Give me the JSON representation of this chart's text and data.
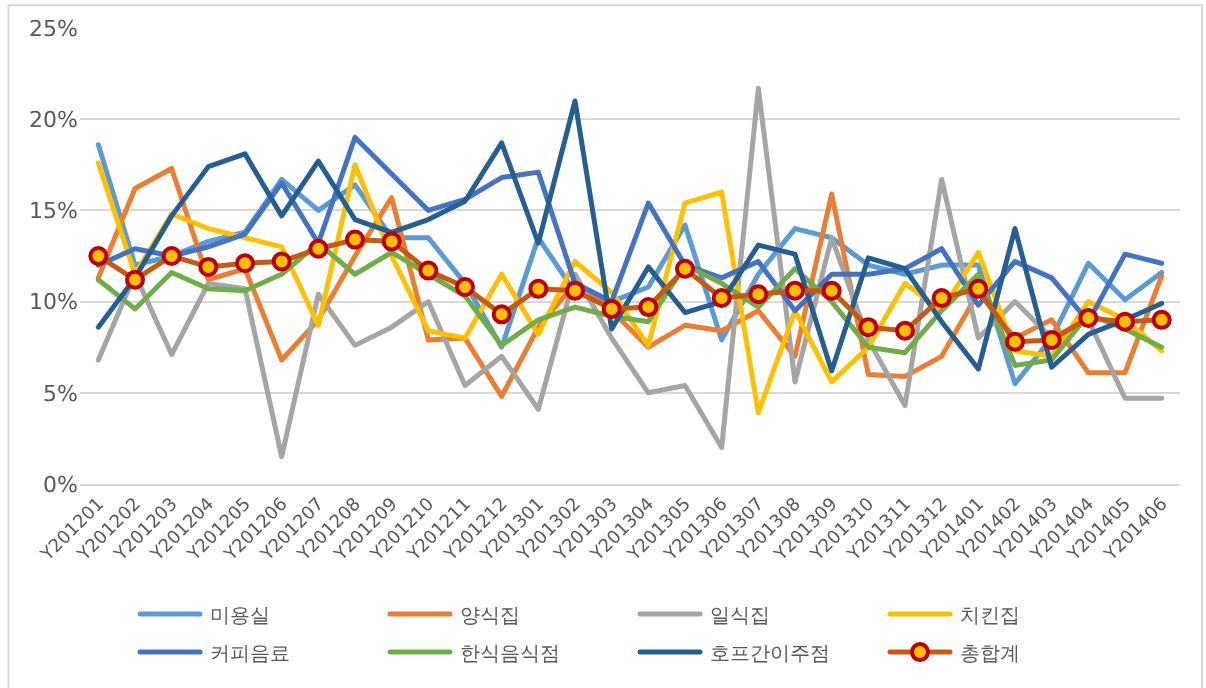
{
  "chart_data": {
    "type": "line",
    "categories": [
      "Y201201",
      "Y201202",
      "Y201203",
      "Y201204",
      "Y201205",
      "Y201206",
      "Y201207",
      "Y201208",
      "Y201209",
      "Y201210",
      "Y201211",
      "Y201212",
      "Y201301",
      "Y201302",
      "Y201303",
      "Y201304",
      "Y201305",
      "Y201306",
      "Y201307",
      "Y201308",
      "Y201309",
      "Y201310",
      "Y201311",
      "Y201312",
      "Y201401",
      "Y201402",
      "Y201403",
      "Y201404",
      "Y201405",
      "Y201406"
    ],
    "series": [
      {
        "name": "미용실",
        "color": "#5b9bd5",
        "values": [
          18.6,
          12.0,
          12.5,
          13.3,
          13.8,
          16.7,
          15.0,
          16.4,
          13.5,
          13.5,
          11.0,
          7.5,
          13.5,
          10.5,
          10.0,
          10.8,
          14.2,
          7.9,
          11.5,
          14.0,
          13.5,
          12.0,
          11.5,
          12.0,
          12.0,
          5.5,
          8.0,
          12.1,
          10.1,
          11.6
        ]
      },
      {
        "name": "양식집",
        "color": "#ed7d31",
        "values": [
          11.3,
          16.2,
          17.3,
          11.2,
          11.8,
          6.8,
          9.0,
          12.5,
          15.7,
          7.9,
          8.0,
          4.8,
          8.6,
          11.0,
          9.5,
          7.5,
          8.7,
          8.4,
          9.5,
          7.0,
          15.9,
          6.0,
          5.9,
          7.0,
          10.5,
          8.0,
          9.0,
          6.1,
          6.1,
          11.4
        ]
      },
      {
        "name": "일식집",
        "color": "#a5a5a5",
        "values": [
          6.8,
          11.5,
          7.1,
          11.0,
          10.7,
          1.5,
          10.4,
          7.6,
          8.6,
          10.0,
          5.4,
          7.0,
          4.1,
          11.5,
          8.0,
          5.0,
          5.4,
          2.0,
          21.7,
          5.6,
          13.5,
          7.9,
          4.3,
          16.7,
          8.0,
          10.0,
          8.0,
          9.0,
          4.7,
          4.7
        ]
      },
      {
        "name": "치킨집",
        "color": "#ffc000",
        "values": [
          17.6,
          11.5,
          14.8,
          14.0,
          13.5,
          13.0,
          8.7,
          17.5,
          12.5,
          8.4,
          8.0,
          11.5,
          8.2,
          12.2,
          10.5,
          7.6,
          15.4,
          16.0,
          3.9,
          9.5,
          5.6,
          7.5,
          11.0,
          9.5,
          12.7,
          7.3,
          7.0,
          10.0,
          9.0,
          7.3
        ]
      },
      {
        "name": "커피음료",
        "color": "#4472c4",
        "values": [
          12.0,
          12.9,
          12.5,
          13.0,
          13.7,
          16.5,
          13.2,
          19.0,
          17.0,
          15.0,
          15.6,
          16.8,
          17.1,
          11.0,
          10.0,
          15.4,
          12.0,
          11.3,
          12.2,
          9.5,
          11.5,
          11.5,
          11.8,
          12.9,
          9.8,
          12.2,
          11.3,
          8.9,
          12.6,
          12.1
        ]
      },
      {
        "name": "한식음식점",
        "color": "#70ad47",
        "values": [
          11.2,
          9.6,
          11.6,
          10.7,
          10.6,
          11.5,
          13.2,
          11.5,
          12.7,
          11.5,
          10.3,
          7.6,
          9.0,
          9.7,
          9.2,
          8.9,
          12.0,
          11.0,
          9.7,
          11.8,
          10.0,
          7.5,
          7.2,
          9.5,
          11.5,
          6.5,
          6.8,
          9.3,
          8.5,
          7.5
        ]
      },
      {
        "name": "호프간이주점",
        "color": "#255e91",
        "values": [
          8.6,
          11.3,
          14.7,
          17.4,
          18.1,
          14.7,
          17.7,
          14.5,
          13.8,
          14.5,
          15.5,
          18.7,
          13.2,
          21.0,
          8.5,
          11.9,
          9.4,
          10.0,
          13.1,
          12.6,
          6.2,
          12.4,
          11.8,
          8.9,
          6.3,
          14.0,
          6.4,
          8.2,
          9.0,
          9.9
        ]
      },
      {
        "name": "총합계",
        "color": "#c55a11",
        "marker": "circle",
        "values": [
          12.5,
          11.2,
          12.5,
          11.9,
          12.1,
          12.2,
          12.9,
          13.4,
          13.3,
          11.7,
          10.8,
          9.3,
          10.7,
          10.6,
          9.6,
          9.7,
          11.8,
          10.2,
          10.4,
          10.6,
          10.6,
          8.6,
          8.4,
          10.2,
          10.7,
          7.8,
          7.9,
          9.1,
          8.9,
          9.0
        ]
      }
    ],
    "ylim": [
      0,
      25
    ],
    "yticks": [
      {
        "value": 0,
        "label": "0%"
      },
      {
        "value": 5,
        "label": "5%"
      },
      {
        "value": 10,
        "label": "10%"
      },
      {
        "value": 15,
        "label": "15%"
      },
      {
        "value": 20,
        "label": "20%"
      },
      {
        "value": 25,
        "label": "25%"
      }
    ],
    "grid": "y",
    "legend": "bottom",
    "line_style": "solid"
  }
}
